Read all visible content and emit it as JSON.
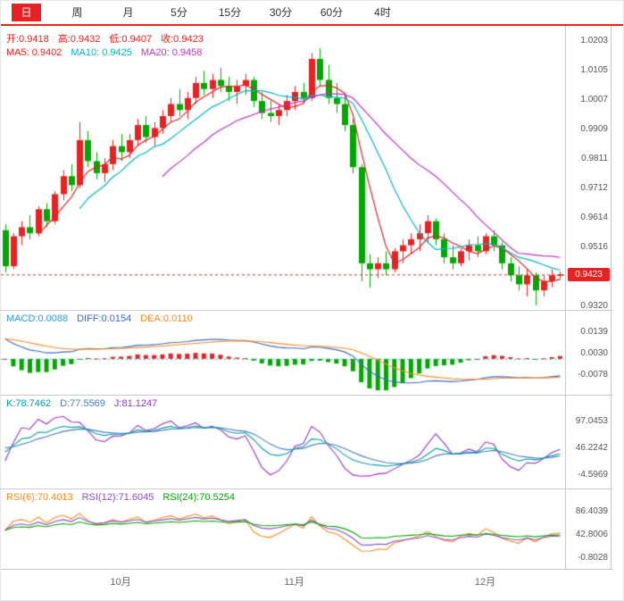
{
  "colors": {
    "up": "#e62222",
    "down": "#00a800",
    "accent_red": "#e62222",
    "ma5": "#e62222",
    "ma10": "#00b5c9",
    "ma20": "#c62ec6",
    "diff": "#3a6bc9",
    "dea": "#ff8a1e",
    "macd_text": "#2e9bd6",
    "k": "#009fa0",
    "d": "#4a7ebb",
    "j": "#9b30d0",
    "rsi6": "#ff8a1e",
    "rsi12": "#8a4fc8",
    "rsi24": "#00a800",
    "axis_text": "#555555",
    "grid": "#c8c8c8",
    "zero_line": "#2ab3c9",
    "tab_active_bg": "#e62222"
  },
  "tabs": [
    {
      "label": "日",
      "name": "tab-day",
      "active": true
    },
    {
      "label": "周",
      "name": "tab-week",
      "active": false
    },
    {
      "label": "月",
      "name": "tab-month",
      "active": false
    },
    {
      "label": "5分",
      "name": "tab-5min",
      "active": false
    },
    {
      "label": "15分",
      "name": "tab-15min",
      "active": false
    },
    {
      "label": "30分",
      "name": "tab-30min",
      "active": false
    },
    {
      "label": "60分",
      "name": "tab-60min",
      "active": false
    },
    {
      "label": "4时",
      "name": "tab-4hour",
      "active": false
    }
  ],
  "main": {
    "ohlc_readout": [
      {
        "text": "开:0.9418",
        "name": "open-readout",
        "color_key": "accent_red"
      },
      {
        "text": "高:0.9432",
        "name": "high-readout",
        "color_key": "accent_red"
      },
      {
        "text": "低:0.9407",
        "name": "low-readout",
        "color_key": "accent_red"
      },
      {
        "text": "收:0.9423",
        "name": "close-readout",
        "color_key": "accent_red"
      }
    ],
    "ma_readout": [
      {
        "text": "MA5: 0.9402",
        "name": "ma5-readout",
        "color_key": "ma5"
      },
      {
        "text": "MA10: 0.9425",
        "name": "ma10-readout",
        "color_key": "ma10"
      },
      {
        "text": "MA20: 0.9458",
        "name": "ma20-readout",
        "color_key": "ma20"
      }
    ],
    "axis_labels": [
      "1.0203",
      "1.0105",
      "1.0007",
      "0.9909",
      "0.9811",
      "0.9712",
      "0.9614",
      "0.9516",
      "0.9320"
    ],
    "axis_values": [
      1.0203,
      1.0105,
      1.0007,
      0.9909,
      0.9811,
      0.9712,
      0.9614,
      0.9516,
      0.932
    ],
    "current_price": "0.9423",
    "current_price_value": 0.9423
  },
  "panels": {
    "macd": {
      "readout": [
        {
          "text": "MACD:0.0088",
          "name": "macd-readout-value",
          "color_key": "macd_text"
        },
        {
          "text": "DIFF:0.0154",
          "name": "diff-readout-value",
          "color_key": "diff"
        },
        {
          "text": "DEA:0.0110",
          "name": "dea-readout-value",
          "color_key": "dea"
        }
      ],
      "axis_labels": [
        "0.0139",
        "0.0030",
        "-0.0078"
      ],
      "axis_values": [
        0.0139,
        0.003,
        -0.0078
      ]
    },
    "kdj": {
      "readout": [
        {
          "text": "K:78.7462",
          "name": "k-readout-value",
          "color_key": "k"
        },
        {
          "text": "D:77.5569",
          "name": "d-readout-value",
          "color_key": "d"
        },
        {
          "text": "J:81.1247",
          "name": "j-readout-value",
          "color_key": "j"
        }
      ],
      "axis_labels": [
        "97.0453",
        "46.2242",
        "-4.5969"
      ],
      "axis_values": [
        97.0453,
        46.2242,
        -4.5969
      ]
    },
    "rsi": {
      "readout": [
        {
          "text": "RSI(6):70.4013",
          "name": "rsi6-readout-value",
          "color_key": "rsi6"
        },
        {
          "text": "RSI(12):71.6045",
          "name": "rsi12-readout-value",
          "color_key": "rsi12"
        },
        {
          "text": "RSI(24):70.5254",
          "name": "rsi24-readout-value",
          "color_key": "rsi24"
        }
      ],
      "axis_labels": [
        "86.4039",
        "42.8006",
        "-0.8028"
      ],
      "axis_values": [
        86.4039,
        42.8006,
        -0.8028
      ]
    }
  },
  "x_axis": {
    "ticks": [
      {
        "index": 14,
        "label": "10月"
      },
      {
        "index": 35,
        "label": "11月"
      },
      {
        "index": 58,
        "label": "12月"
      }
    ]
  },
  "chart_data": {
    "type": "candlestick",
    "ohlc_format": [
      "open",
      "high",
      "low",
      "close"
    ],
    "up_color_means": "close>=open (red, Chinese convention)",
    "candles": [
      [
        0.957,
        0.959,
        0.943,
        0.945
      ],
      [
        0.945,
        0.956,
        0.944,
        0.955
      ],
      [
        0.955,
        0.96,
        0.952,
        0.958
      ],
      [
        0.958,
        0.962,
        0.954,
        0.956
      ],
      [
        0.956,
        0.965,
        0.955,
        0.964
      ],
      [
        0.964,
        0.966,
        0.958,
        0.96
      ],
      [
        0.96,
        0.97,
        0.959,
        0.969
      ],
      [
        0.969,
        0.977,
        0.967,
        0.975
      ],
      [
        0.975,
        0.979,
        0.97,
        0.972
      ],
      [
        0.972,
        0.993,
        0.971,
        0.987
      ],
      [
        0.987,
        0.99,
        0.978,
        0.98
      ],
      [
        0.98,
        0.983,
        0.974,
        0.976
      ],
      [
        0.976,
        0.981,
        0.973,
        0.979
      ],
      [
        0.979,
        0.987,
        0.977,
        0.985
      ],
      [
        0.985,
        0.989,
        0.98,
        0.983
      ],
      [
        0.983,
        0.989,
        0.981,
        0.987
      ],
      [
        0.987,
        0.994,
        0.985,
        0.992
      ],
      [
        0.992,
        0.995,
        0.986,
        0.988
      ],
      [
        0.988,
        0.993,
        0.985,
        0.991
      ],
      [
        0.991,
        0.997,
        0.989,
        0.995
      ],
      [
        0.995,
        1.001,
        0.993,
        0.999
      ],
      [
        0.999,
        1.004,
        0.995,
        0.997
      ],
      [
        0.997,
        1.003,
        0.994,
        1.001
      ],
      [
        1.001,
        1.008,
        0.999,
        1.006
      ],
      [
        1.006,
        1.01,
        1.002,
        1.004
      ],
      [
        1.004,
        1.009,
        1.001,
        1.007
      ],
      [
        1.007,
        1.011,
        1.003,
        1.005
      ],
      [
        1.005,
        1.008,
        1.0,
        1.003
      ],
      [
        1.003,
        1.007,
        0.999,
        1.005
      ],
      [
        1.005,
        1.009,
        1.002,
        1.007
      ],
      [
        1.007,
        1.008,
        0.998,
        1.0
      ],
      [
        1.0,
        1.003,
        0.994,
        0.996
      ],
      [
        0.996,
        1.0,
        0.993,
        0.995
      ],
      [
        0.995,
        0.999,
        0.992,
        0.997
      ],
      [
        0.997,
        1.002,
        0.995,
        1.0
      ],
      [
        1.0,
        1.005,
        0.997,
        1.003
      ],
      [
        1.003,
        1.006,
        0.999,
        1.001
      ],
      [
        1.001,
        1.016,
        1.0,
        1.014
      ],
      [
        1.014,
        1.0175,
        1.005,
        1.007
      ],
      [
        1.007,
        1.012,
        0.999,
        1.001
      ],
      [
        1.001,
        1.006,
        0.996,
        0.999
      ],
      [
        0.999,
        1.002,
        0.99,
        0.992
      ],
      [
        0.992,
        0.994,
        0.976,
        0.978
      ],
      [
        0.978,
        0.979,
        0.94,
        0.946
      ],
      [
        0.946,
        0.949,
        0.938,
        0.944
      ],
      [
        0.944,
        0.948,
        0.941,
        0.946
      ],
      [
        0.946,
        0.95,
        0.942,
        0.944
      ],
      [
        0.944,
        0.951,
        0.943,
        0.95
      ],
      [
        0.95,
        0.954,
        0.946,
        0.952
      ],
      [
        0.952,
        0.956,
        0.949,
        0.954
      ],
      [
        0.954,
        0.959,
        0.95,
        0.956
      ],
      [
        0.956,
        0.962,
        0.953,
        0.96
      ],
      [
        0.96,
        0.961,
        0.952,
        0.954
      ],
      [
        0.954,
        0.956,
        0.946,
        0.948
      ],
      [
        0.948,
        0.952,
        0.944,
        0.946
      ],
      [
        0.946,
        0.951,
        0.945,
        0.95
      ],
      [
        0.95,
        0.954,
        0.947,
        0.952
      ],
      [
        0.952,
        0.955,
        0.948,
        0.95
      ],
      [
        0.95,
        0.956,
        0.949,
        0.955
      ],
      [
        0.955,
        0.957,
        0.95,
        0.952
      ],
      [
        0.952,
        0.953,
        0.944,
        0.946
      ],
      [
        0.946,
        0.948,
        0.94,
        0.942
      ],
      [
        0.942,
        0.945,
        0.937,
        0.939
      ],
      [
        0.939,
        0.944,
        0.935,
        0.942
      ],
      [
        0.942,
        0.943,
        0.932,
        0.937
      ],
      [
        0.937,
        0.942,
        0.935,
        0.94
      ],
      [
        0.94,
        0.944,
        0.938,
        0.942
      ],
      [
        0.9418,
        0.9432,
        0.9407,
        0.9423
      ]
    ],
    "moving_averages": [
      5,
      10,
      20
    ],
    "indicator_periods": {
      "macd": [
        12,
        26,
        9
      ],
      "kdj": [
        9,
        3,
        3
      ],
      "rsi": [
        6,
        12,
        24
      ]
    },
    "scales": {
      "main": {
        "max": 1.025,
        "min": 0.9305
      },
      "macd": {
        "max": 0.024,
        "min": -0.0179
      },
      "kdj": {
        "max": 144,
        "min": -31
      },
      "rsi": {
        "max": 127,
        "min": -23
      }
    }
  }
}
